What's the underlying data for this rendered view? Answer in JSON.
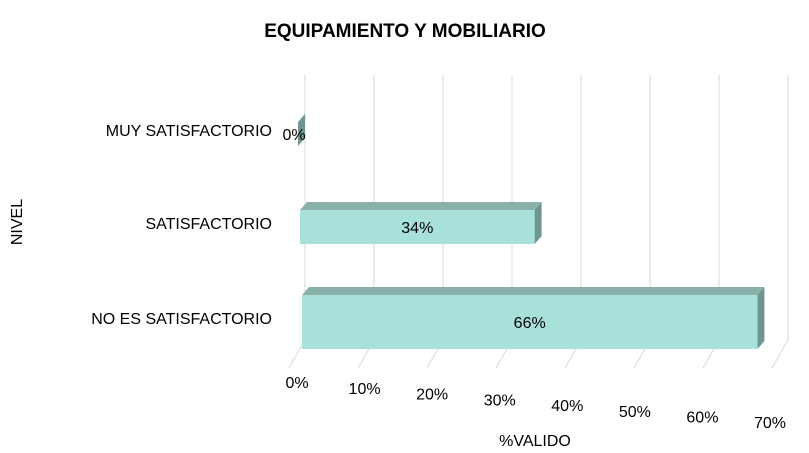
{
  "chart_data": {
    "type": "bar",
    "orientation": "horizontal",
    "title": "EQUIPAMIENTO Y MOBILIARIO",
    "x_label": "%VALIDO",
    "y_label": "NIVEL",
    "categories": [
      "MUY SATISFACTORIO",
      "SATISFACTORIO",
      "NO ES SATISFACTORIO"
    ],
    "values": [
      0,
      34,
      66
    ],
    "value_labels": [
      "0%",
      "34%",
      "66%"
    ],
    "color": "#a8e0da",
    "xlim": [
      0,
      70
    ],
    "xticks": [
      {
        "value": 0,
        "label": "0%"
      },
      {
        "value": 10,
        "label": "10%"
      },
      {
        "value": 20,
        "label": "20%"
      },
      {
        "value": 30,
        "label": "30%"
      },
      {
        "value": 40,
        "label": "40%"
      },
      {
        "value": 50,
        "label": "50%"
      },
      {
        "value": 60,
        "label": "60%"
      },
      {
        "value": 70,
        "label": "70%"
      }
    ],
    "grid": true
  }
}
